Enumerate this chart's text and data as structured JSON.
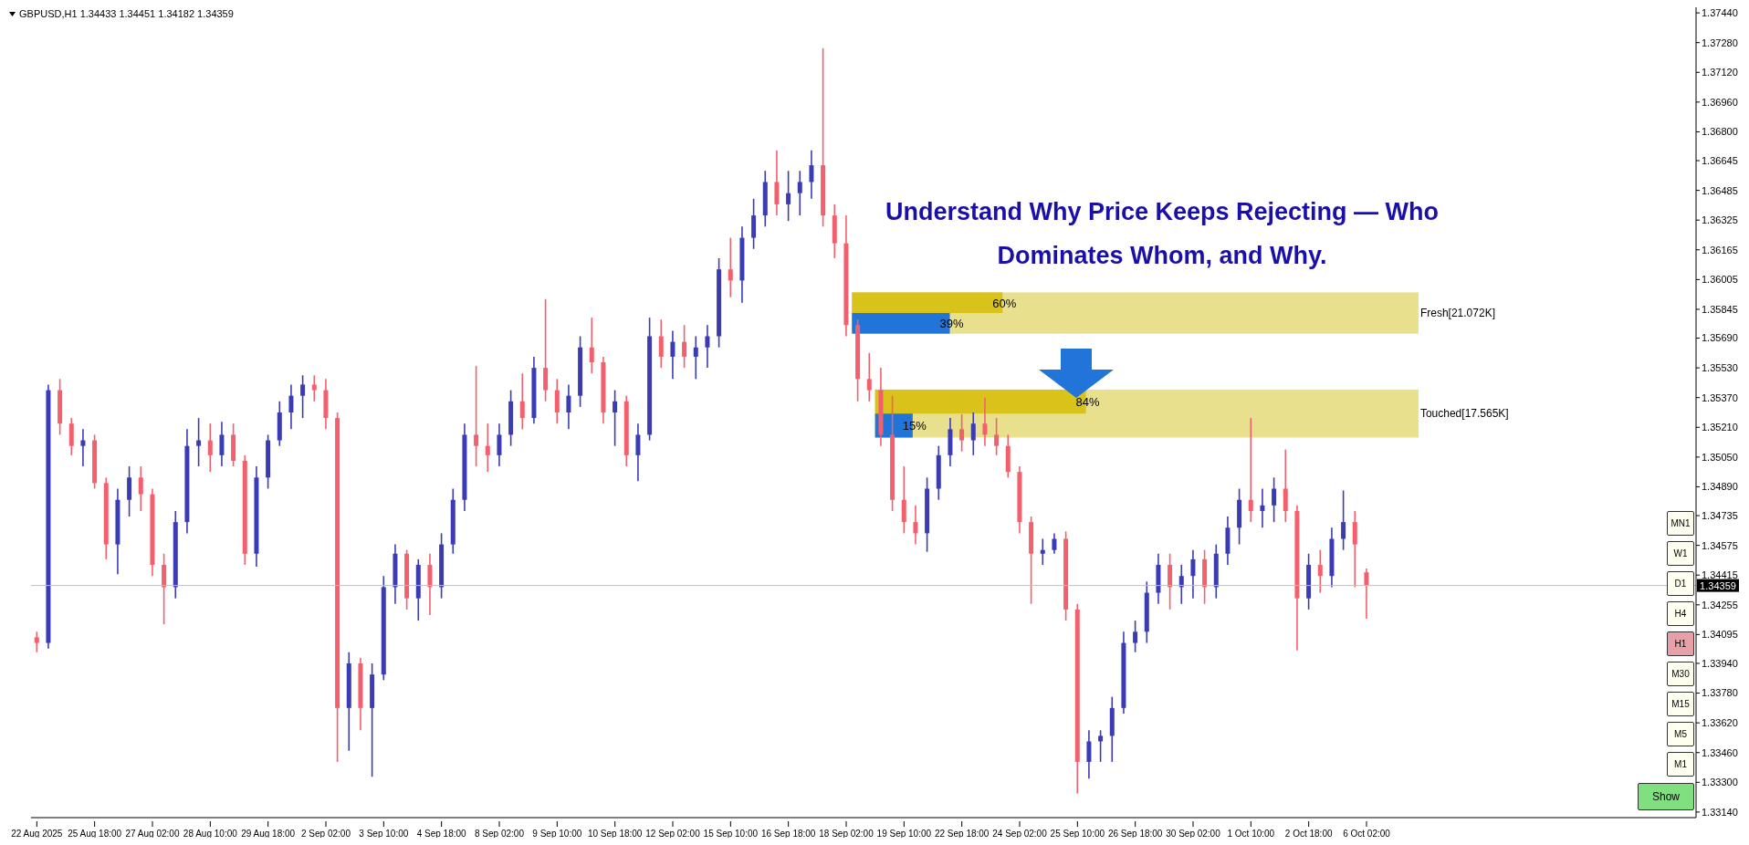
{
  "chart_data": {
    "type": "candlestick",
    "title": "Understand Why Price Keeps Rejecting — Who Dominates Whom, and Why.",
    "categories": [
      "22 Aug 2025",
      null,
      null,
      null,
      null,
      "25 Aug 18:00",
      null,
      null,
      null,
      null,
      "27 Aug 02:00",
      null,
      null,
      null,
      null,
      "28 Aug 10:00",
      null,
      null,
      null,
      null,
      "29 Aug 18:00",
      null,
      null,
      null,
      null,
      "2 Sep 02:00",
      null,
      null,
      null,
      null,
      "3 Sep 10:00",
      null,
      null,
      null,
      null,
      "4 Sep 18:00",
      null,
      null,
      null,
      null,
      "8 Sep 02:00",
      null,
      null,
      null,
      null,
      "9 Sep 10:00",
      null,
      null,
      null,
      null,
      "10 Sep 18:00",
      null,
      null,
      null,
      null,
      "12 Sep 02:00",
      null,
      null,
      null,
      null,
      "15 Sep 10:00",
      null,
      null,
      null,
      null,
      "16 Sep 18:00",
      null,
      null,
      null,
      null,
      "18 Sep 02:00",
      null,
      null,
      null,
      null,
      "19 Sep 10:00",
      null,
      null,
      null,
      null,
      "22 Sep 18:00",
      null,
      null,
      null,
      null,
      "24 Sep 02:00",
      null,
      null,
      null,
      null,
      "25 Sep 10:00",
      null,
      null,
      null,
      null,
      "26 Sep 18:00",
      null,
      null,
      null,
      null,
      "30 Sep 02:00",
      null,
      null,
      null,
      null,
      "1 Oct 10:00",
      null,
      null,
      null,
      null,
      "2 Oct 18:00",
      null,
      null,
      null,
      null,
      "6 Oct 02:00",
      null,
      null,
      null,
      null,
      null,
      null,
      null,
      null,
      null,
      null,
      null,
      null,
      null,
      null,
      null,
      null,
      null,
      null,
      null,
      null,
      null,
      null,
      null,
      null,
      null,
      null,
      null,
      null
    ],
    "ohlc": [
      [
        1.3408,
        1.3411,
        1.34,
        1.3405
      ],
      [
        1.3405,
        1.3544,
        1.3402,
        1.3541
      ],
      [
        1.3541,
        1.3547,
        1.3517,
        1.3523
      ],
      [
        1.3523,
        1.3526,
        1.3506,
        1.3511
      ],
      [
        1.3511,
        1.352,
        1.35,
        1.3514
      ],
      [
        1.3514,
        1.3517,
        1.3488,
        1.3491
      ],
      [
        1.3491,
        1.3494,
        1.345,
        1.3458
      ],
      [
        1.3458,
        1.3488,
        1.3442,
        1.3482
      ],
      [
        1.3482,
        1.35,
        1.3473,
        1.3494
      ],
      [
        1.3494,
        1.35,
        1.3476,
        1.3485
      ],
      [
        1.3485,
        1.3488,
        1.3441,
        1.3447
      ],
      [
        1.3447,
        1.3453,
        1.3415,
        1.3435
      ],
      [
        1.3435,
        1.3476,
        1.3429,
        1.347
      ],
      [
        1.347,
        1.352,
        1.3464,
        1.3511
      ],
      [
        1.3511,
        1.3526,
        1.35,
        1.3514
      ],
      [
        1.3514,
        1.3523,
        1.3497,
        1.3506
      ],
      [
        1.3506,
        1.3524,
        1.35,
        1.3517
      ],
      [
        1.3517,
        1.3523,
        1.35,
        1.3503
      ],
      [
        1.3503,
        1.3506,
        1.3447,
        1.3453
      ],
      [
        1.3453,
        1.35,
        1.3446,
        1.3494
      ],
      [
        1.3494,
        1.3517,
        1.3488,
        1.3514
      ],
      [
        1.3514,
        1.3535,
        1.3511,
        1.3529
      ],
      [
        1.3529,
        1.3544,
        1.352,
        1.3538
      ],
      [
        1.3538,
        1.3549,
        1.3526,
        1.3544
      ],
      [
        1.3544,
        1.3549,
        1.3535,
        1.3541
      ],
      [
        1.3541,
        1.3547,
        1.352,
        1.3526
      ],
      [
        1.3526,
        1.3529,
        1.3341,
        1.337
      ],
      [
        1.337,
        1.34,
        1.3347,
        1.3394
      ],
      [
        1.3394,
        1.3397,
        1.3358,
        1.337
      ],
      [
        1.337,
        1.3394,
        1.3333,
        1.3388
      ],
      [
        1.3388,
        1.3441,
        1.3385,
        1.3435
      ],
      [
        1.3435,
        1.3458,
        1.3426,
        1.3453
      ],
      [
        1.3453,
        1.3455,
        1.3423,
        1.3429
      ],
      [
        1.3429,
        1.345,
        1.3417,
        1.3447
      ],
      [
        1.3447,
        1.3453,
        1.342,
        1.3435
      ],
      [
        1.3435,
        1.3464,
        1.3429,
        1.3458
      ],
      [
        1.3458,
        1.3488,
        1.3453,
        1.3482
      ],
      [
        1.3482,
        1.3523,
        1.3476,
        1.3517
      ],
      [
        1.3517,
        1.3554,
        1.35,
        1.3511
      ],
      [
        1.3511,
        1.3523,
        1.3497,
        1.3506
      ],
      [
        1.3506,
        1.3523,
        1.35,
        1.3517
      ],
      [
        1.3517,
        1.3541,
        1.3511,
        1.3535
      ],
      [
        1.3535,
        1.355,
        1.352,
        1.3526
      ],
      [
        1.3526,
        1.3559,
        1.3523,
        1.3553
      ],
      [
        1.3553,
        1.359,
        1.3535,
        1.3541
      ],
      [
        1.3541,
        1.3547,
        1.3523,
        1.3529
      ],
      [
        1.3529,
        1.3544,
        1.352,
        1.3538
      ],
      [
        1.3538,
        1.357,
        1.3532,
        1.3564
      ],
      [
        1.3564,
        1.358,
        1.355,
        1.3556
      ],
      [
        1.3556,
        1.3559,
        1.3523,
        1.3529
      ],
      [
        1.3529,
        1.3541,
        1.3511,
        1.3535
      ],
      [
        1.3535,
        1.3538,
        1.35,
        1.3506
      ],
      [
        1.3506,
        1.3523,
        1.3492,
        1.3517
      ],
      [
        1.3517,
        1.358,
        1.3514,
        1.357
      ],
      [
        1.357,
        1.3579,
        1.3553,
        1.3559
      ],
      [
        1.3559,
        1.3573,
        1.3547,
        1.3567
      ],
      [
        1.3567,
        1.3576,
        1.3553,
        1.3559
      ],
      [
        1.3559,
        1.357,
        1.3547,
        1.3564
      ],
      [
        1.3564,
        1.3576,
        1.3553,
        1.357
      ],
      [
        1.357,
        1.3612,
        1.3564,
        1.3606
      ],
      [
        1.3606,
        1.3623,
        1.3591,
        1.36
      ],
      [
        1.36,
        1.3629,
        1.3588,
        1.3623
      ],
      [
        1.3623,
        1.3644,
        1.3617,
        1.3635
      ],
      [
        1.3635,
        1.3659,
        1.3629,
        1.3653
      ],
      [
        1.3653,
        1.367,
        1.3635,
        1.3641
      ],
      [
        1.3641,
        1.3659,
        1.3632,
        1.3647
      ],
      [
        1.3647,
        1.3659,
        1.3635,
        1.3653
      ],
      [
        1.3653,
        1.367,
        1.3644,
        1.3662
      ],
      [
        1.3662,
        1.3725,
        1.3629,
        1.3635
      ],
      [
        1.3635,
        1.3641,
        1.3612,
        1.362
      ],
      [
        1.362,
        1.3635,
        1.357,
        1.3576
      ],
      [
        1.3576,
        1.3579,
        1.3535,
        1.3547
      ],
      [
        1.3547,
        1.3561,
        1.3535,
        1.3541
      ],
      [
        1.3541,
        1.3553,
        1.3511,
        1.3517
      ],
      [
        1.3517,
        1.3538,
        1.3476,
        1.3482
      ],
      [
        1.3482,
        1.35,
        1.3464,
        1.347
      ],
      [
        1.347,
        1.3479,
        1.3458,
        1.3464
      ],
      [
        1.3464,
        1.3494,
        1.3454,
        1.3488
      ],
      [
        1.3488,
        1.3511,
        1.3482,
        1.3506
      ],
      [
        1.3506,
        1.3526,
        1.35,
        1.352
      ],
      [
        1.352,
        1.3528,
        1.3508,
        1.3514
      ],
      [
        1.3514,
        1.3529,
        1.3506,
        1.3523
      ],
      [
        1.3523,
        1.3537,
        1.3511,
        1.3517
      ],
      [
        1.3517,
        1.3526,
        1.3506,
        1.3511
      ],
      [
        1.3511,
        1.3517,
        1.3494,
        1.3497
      ],
      [
        1.3497,
        1.35,
        1.3464,
        1.347
      ],
      [
        1.347,
        1.3473,
        1.3426,
        1.3453
      ],
      [
        1.3453,
        1.3461,
        1.3447,
        1.3455
      ],
      [
        1.3455,
        1.3464,
        1.3453,
        1.3461
      ],
      [
        1.3461,
        1.3465,
        1.3417,
        1.3423
      ],
      [
        1.3423,
        1.3426,
        1.3324,
        1.3341
      ],
      [
        1.3341,
        1.3358,
        1.3332,
        1.3352
      ],
      [
        1.3352,
        1.3358,
        1.3341,
        1.3355
      ],
      [
        1.3355,
        1.3376,
        1.3341,
        1.337
      ],
      [
        1.337,
        1.3411,
        1.3367,
        1.3405
      ],
      [
        1.3405,
        1.3417,
        1.34,
        1.3411
      ],
      [
        1.3411,
        1.3438,
        1.3405,
        1.3432
      ],
      [
        1.3432,
        1.3453,
        1.3426,
        1.3447
      ],
      [
        1.3447,
        1.3453,
        1.3423,
        1.3435
      ],
      [
        1.3435,
        1.3447,
        1.3426,
        1.3441
      ],
      [
        1.3441,
        1.3455,
        1.3429,
        1.345
      ],
      [
        1.345,
        1.3455,
        1.3426,
        1.3435
      ],
      [
        1.3435,
        1.3458,
        1.3429,
        1.3453
      ],
      [
        1.3453,
        1.3473,
        1.3447,
        1.3467
      ],
      [
        1.3467,
        1.3488,
        1.3458,
        1.3482
      ],
      [
        1.3482,
        1.3526,
        1.347,
        1.3476
      ],
      [
        1.3476,
        1.3488,
        1.3467,
        1.3479
      ],
      [
        1.3479,
        1.3494,
        1.347,
        1.3488
      ],
      [
        1.3488,
        1.3509,
        1.347,
        1.3476
      ],
      [
        1.3476,
        1.3479,
        1.3401,
        1.3429
      ],
      [
        1.3429,
        1.3453,
        1.3423,
        1.3447
      ],
      [
        1.3447,
        1.3455,
        1.3432,
        1.3441
      ],
      [
        1.3441,
        1.3467,
        1.3435,
        1.3461
      ],
      [
        1.3461,
        1.3487,
        1.3455,
        1.347
      ],
      [
        1.347,
        1.3476,
        1.3435,
        1.3458
      ],
      [
        1.3443,
        1.3445,
        1.3418,
        1.3436
      ],
      null,
      null,
      null,
      null,
      null,
      null,
      null,
      null,
      null,
      null,
      null,
      null,
      null,
      null,
      null,
      null,
      null,
      null,
      null,
      null,
      null,
      null,
      null,
      null,
      null,
      null,
      null,
      null
    ],
    "ylim": [
      1.3311,
      1.3747
    ],
    "yticks": [
      {
        "value": 1.3744,
        "label": "1.37440"
      },
      {
        "value": 1.3728,
        "label": "1.37280"
      },
      {
        "value": 1.3712,
        "label": "1.37120"
      },
      {
        "value": 1.3696,
        "label": "1.36960"
      },
      {
        "value": 1.368,
        "label": "1.36800"
      },
      1.36645,
      1.36485,
      1.36325,
      1.36165,
      1.36005,
      1.35845,
      {
        "value": 1.3569,
        "label": "1.35690"
      },
      {
        "value": 1.3553,
        "label": "1.35530"
      },
      {
        "value": 1.3537,
        "label": "1.35370"
      },
      {
        "value": 1.3521,
        "label": "1.35210"
      },
      {
        "value": 1.3505,
        "label": "1.35050"
      },
      {
        "value": 1.3489,
        "label": "1.34890"
      },
      1.34735,
      1.34575,
      1.34415,
      1.34255,
      1.34095,
      {
        "value": 1.3394,
        "label": "1.33940"
      },
      {
        "value": 1.3378,
        "label": "1.33780"
      },
      {
        "value": 1.3362,
        "label": "1.33620"
      },
      {
        "value": 1.3346,
        "label": "1.33460"
      },
      {
        "value": 1.333,
        "label": "1.33300"
      },
      {
        "value": 1.3314,
        "label": "1.33140"
      }
    ],
    "ref_lines": [
      {
        "axis": "y",
        "value": 1.34359,
        "label": "1.34359",
        "color": "#c0c0c0"
      }
    ],
    "bands": [
      {
        "axis": "y",
        "from": 1.35714,
        "to": 1.35936,
        "label": "Fresh[21.072K]",
        "color": "#e9e08e"
      },
      {
        "axis": "y",
        "from": 1.35155,
        "to": 1.35413,
        "label": "Touched[17.565K]",
        "color": "#e9e08e"
      }
    ],
    "annotations": [
      "GBPUSD,H1  1.34433 1.34451 1.34182 1.34359",
      "60%",
      "39%",
      "84%",
      "15%",
      "MN1",
      "W1",
      "D1",
      "H4",
      "H1",
      "M30",
      "M15",
      "M5",
      "M1",
      "Show"
    ],
    "grid": false,
    "legend": false
  }
}
